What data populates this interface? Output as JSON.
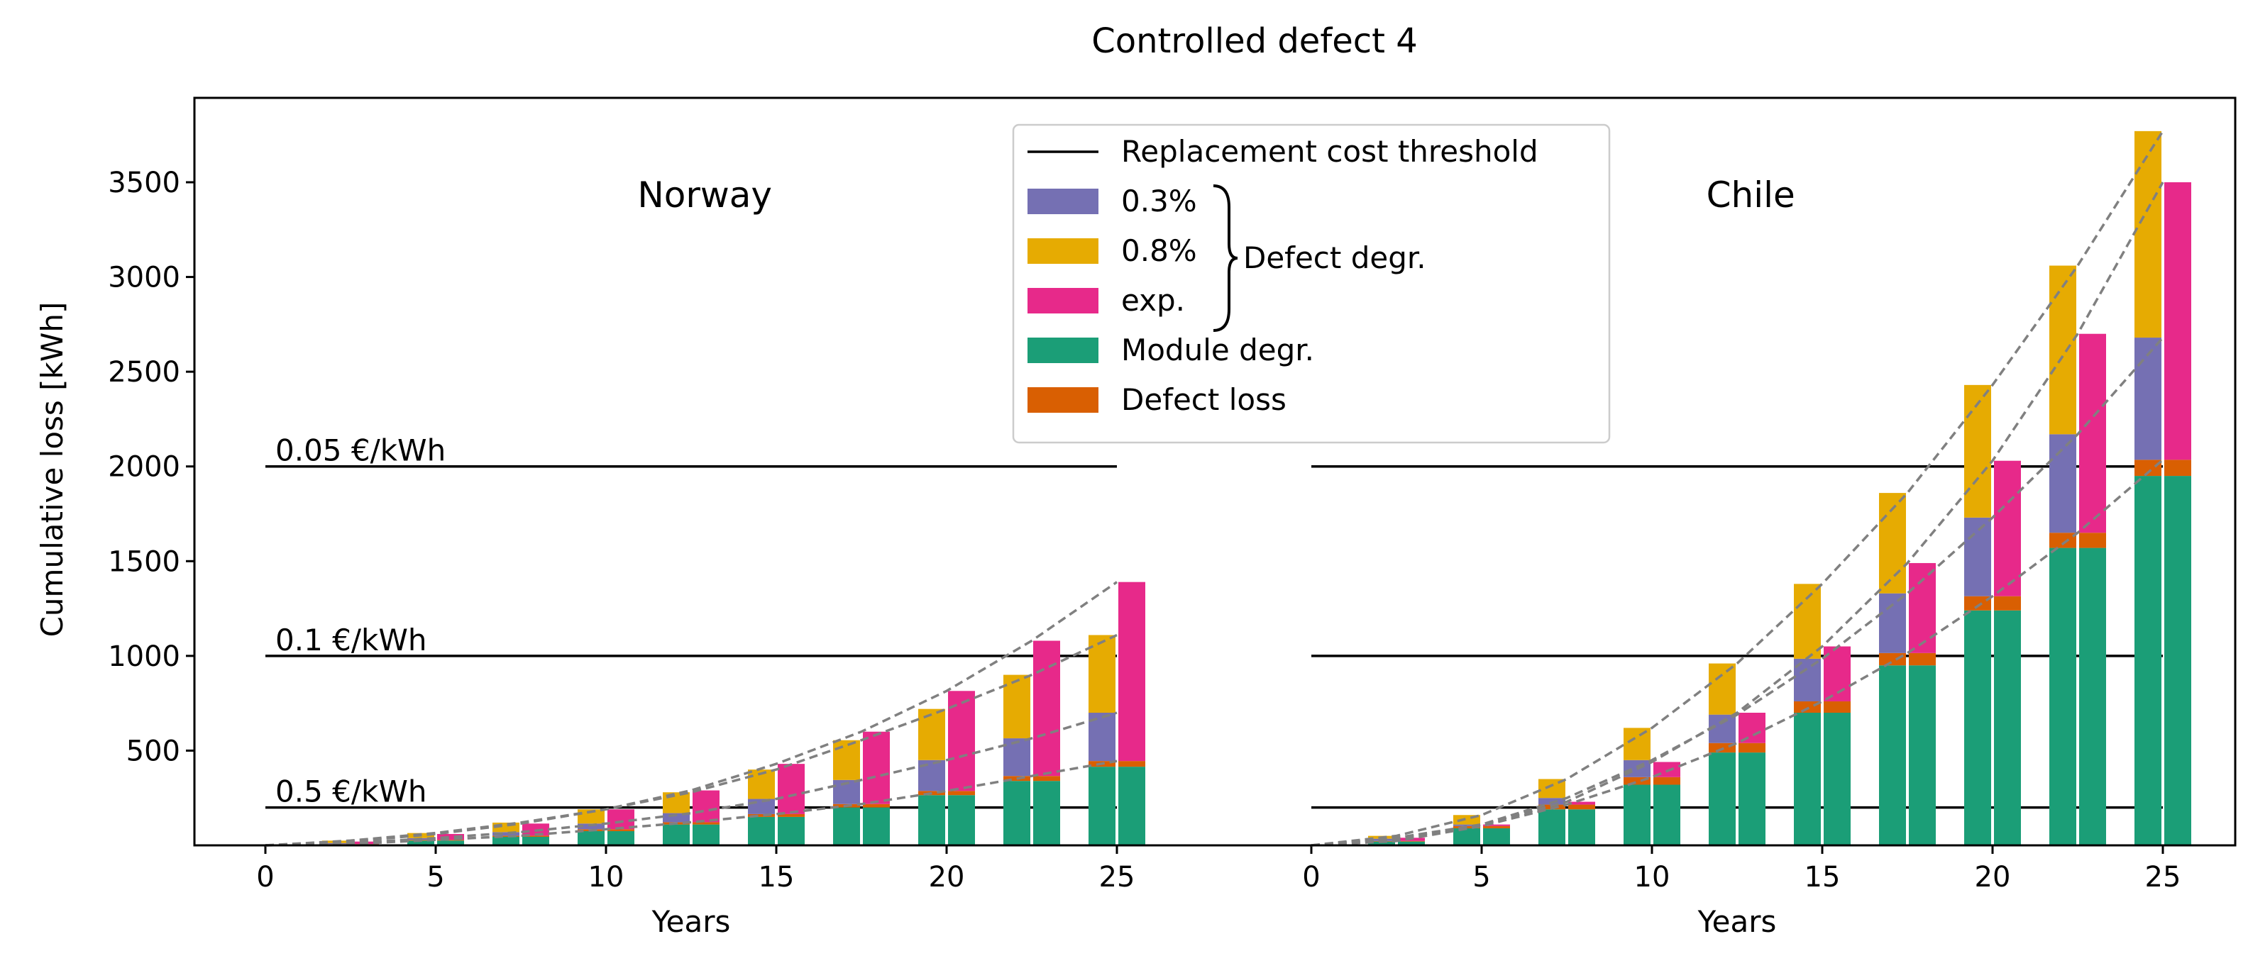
{
  "chart_data": {
    "type": "bar",
    "title": "Controlled defect 4",
    "ylabel": "Cumulative loss [kWh]",
    "xlabel": "Years",
    "ylim": [
      0,
      3950
    ],
    "y_ticks": [
      500,
      1000,
      1500,
      2000,
      2500,
      3000,
      3500
    ],
    "x_ticks": [
      0,
      5,
      10,
      15,
      20,
      25
    ],
    "colors": {
      "s03": "#7570b3",
      "s08": "#e6ab02",
      "exp": "#e7298a",
      "module": "#1b9e77",
      "defect": "#d95f02",
      "curve": "#808080",
      "threshold": "#000000"
    },
    "legend": {
      "threshold": "Replacement cost threshold",
      "s03": "0.3%",
      "s08": "0.8%",
      "exp": "exp.",
      "group_label": "Defect degr.",
      "module": "Module degr.",
      "defect": "Defect loss"
    },
    "thresholds": [
      {
        "label": "0.05 €/kWh",
        "value": 2000
      },
      {
        "label": "0.1 €/kWh",
        "value": 1000
      },
      {
        "label": "0.5 €/kWh",
        "value": 200
      }
    ],
    "panels": [
      {
        "name": "Norway",
        "years": [
          2.5,
          5,
          7.5,
          10,
          12.5,
          15,
          17.5,
          20,
          22.5,
          25
        ],
        "module": [
          6,
          25,
          45,
          75,
          110,
          150,
          200,
          265,
          340,
          415
        ],
        "defect": [
          1,
          4,
          6,
          10,
          12,
          15,
          18,
          22,
          26,
          30
        ],
        "lin03": [
          12,
          38,
          70,
          115,
          170,
          245,
          345,
          450,
          565,
          700
        ],
        "lin08": [
          25,
          65,
          120,
          190,
          280,
          400,
          555,
          720,
          900,
          1110
        ],
        "exp": [
          20,
          60,
          115,
          190,
          290,
          430,
          600,
          815,
          1080,
          1390
        ]
      },
      {
        "name": "Chile",
        "years": [
          2.5,
          5,
          7.5,
          10,
          12.5,
          15,
          17.5,
          20,
          22.5,
          25
        ],
        "module": [
          20,
          90,
          190,
          320,
          490,
          700,
          950,
          1240,
          1570,
          1950
        ],
        "defect": [
          3,
          12,
          25,
          40,
          50,
          60,
          65,
          75,
          80,
          85
        ],
        "lin03": [
          35,
          110,
          250,
          450,
          690,
          985,
          1330,
          1730,
          2170,
          2680
        ],
        "lin08": [
          50,
          160,
          350,
          620,
          960,
          1380,
          1860,
          2430,
          3060,
          3770
        ],
        "exp": [
          40,
          110,
          230,
          440,
          700,
          1050,
          1490,
          2030,
          2700,
          3500
        ]
      }
    ]
  }
}
